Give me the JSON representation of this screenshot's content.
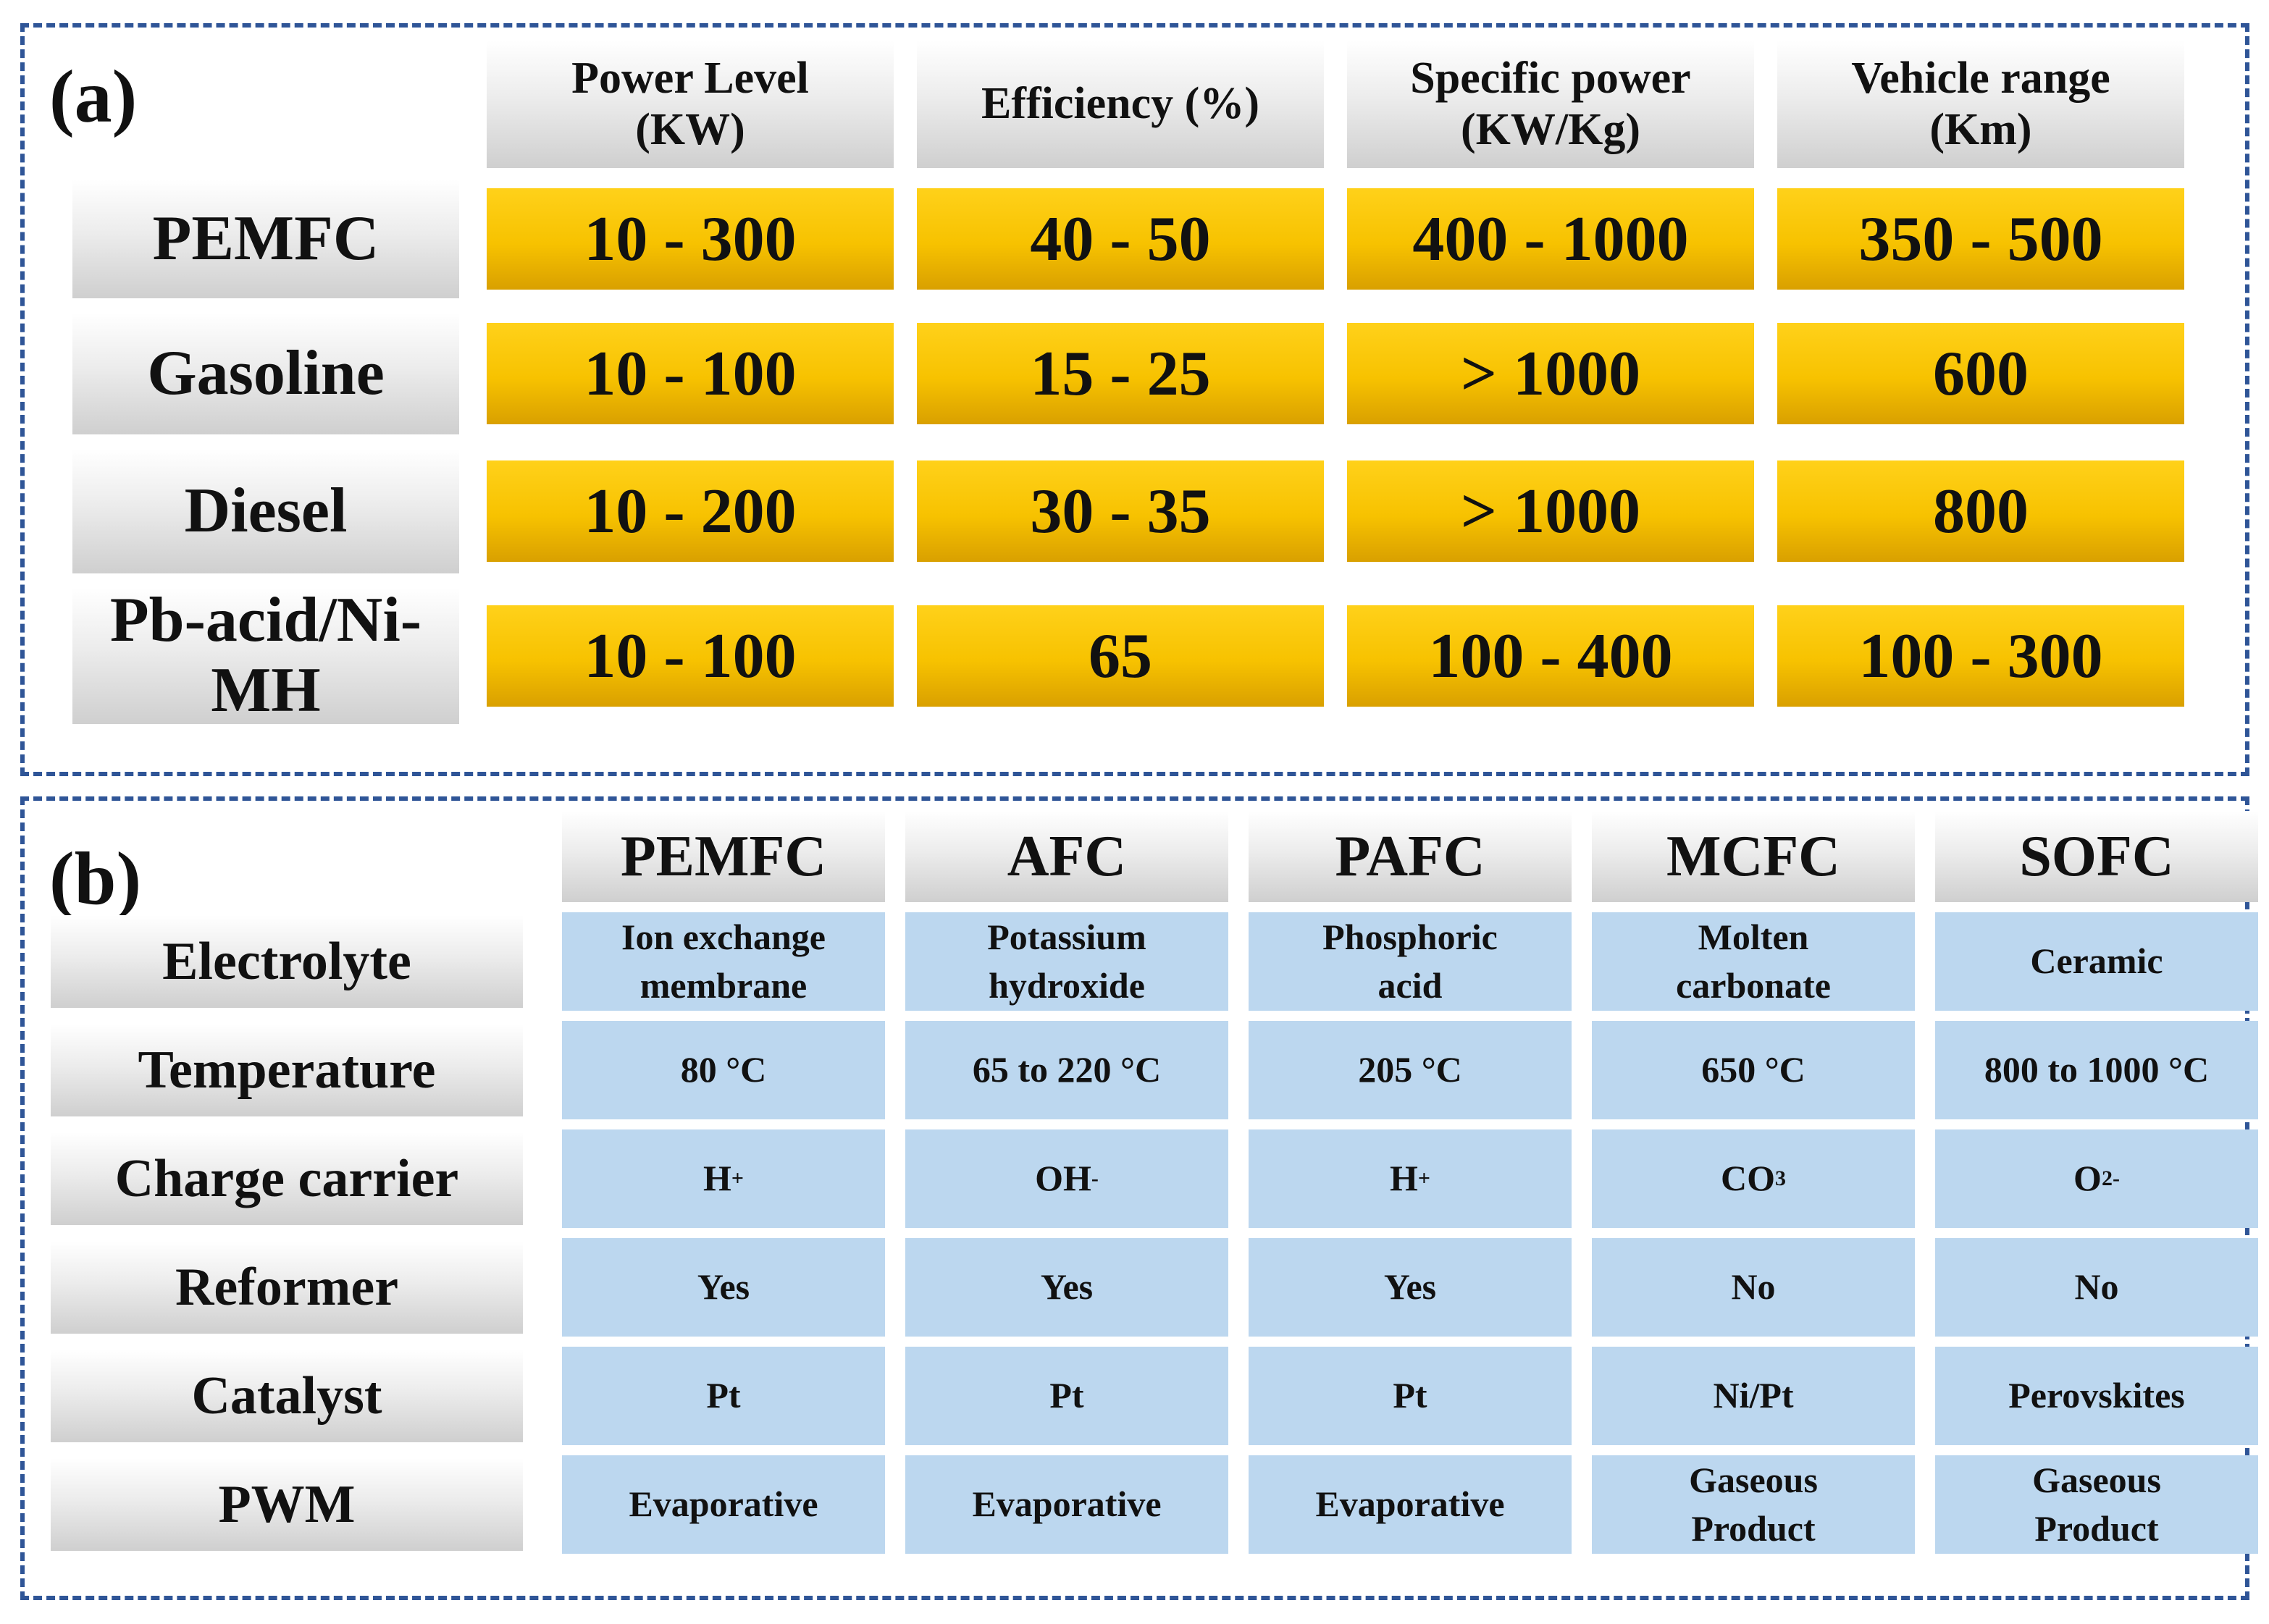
{
  "chart_data": [
    {
      "type": "table",
      "panel_label": "(a)",
      "columns": [
        "Power Level\n(KW)",
        "Efficiency (%)",
        "Specific power\n(KW/Kg)",
        "Vehicle range\n(Km)"
      ],
      "rows": [
        {
          "label": "PEMFC",
          "values": [
            "10 - 300",
            "40 - 50",
            "400 - 1000",
            "350 - 500"
          ]
        },
        {
          "label": "Gasoline",
          "values": [
            "10 - 100",
            "15 - 25",
            "> 1000",
            "600"
          ]
        },
        {
          "label": "Diesel",
          "values": [
            "10 - 200",
            "30 - 35",
            "> 1000",
            "800"
          ]
        },
        {
          "label": "Pb-acid/Ni-\nMH",
          "values": [
            "10 - 100",
            "65",
            "100 - 400",
            "100 - 300"
          ]
        }
      ]
    },
    {
      "type": "table",
      "panel_label": "(b)",
      "columns": [
        "PEMFC",
        "AFC",
        "PAFC",
        "MCFC",
        "SOFC"
      ],
      "rows": [
        {
          "label": "Electrolyte",
          "values": [
            "Ion exchange\nmembrane",
            "Potassium\nhydroxide",
            "Phosphoric\nacid",
            "Molten\ncarbonate",
            "Ceramic"
          ]
        },
        {
          "label": "Temperature",
          "values": [
            "80 °C",
            "65 to 220 °C",
            "205 °C",
            "650 °C",
            "800 to 1000 °C"
          ]
        },
        {
          "label": "Charge carrier",
          "values": [
            "H+",
            "OH-",
            "H+",
            "CO3",
            "O2-"
          ]
        },
        {
          "label": "Reformer",
          "values": [
            "Yes",
            "Yes",
            "Yes",
            "No",
            "No"
          ]
        },
        {
          "label": "Catalyst",
          "values": [
            "Pt",
            "Pt",
            "Pt",
            "Ni/Pt",
            "Perovskites"
          ]
        },
        {
          "label": "PWM",
          "values": [
            "Evaporative",
            "Evaporative",
            "Evaporative",
            "Gaseous\nProduct",
            "Gaseous\nProduct"
          ]
        }
      ]
    }
  ],
  "colors": {
    "border": "#2f5597",
    "gold_cell": "#f7c200",
    "blue_cell": "#bcd7ef",
    "header_gray": "#d9d9d9"
  }
}
